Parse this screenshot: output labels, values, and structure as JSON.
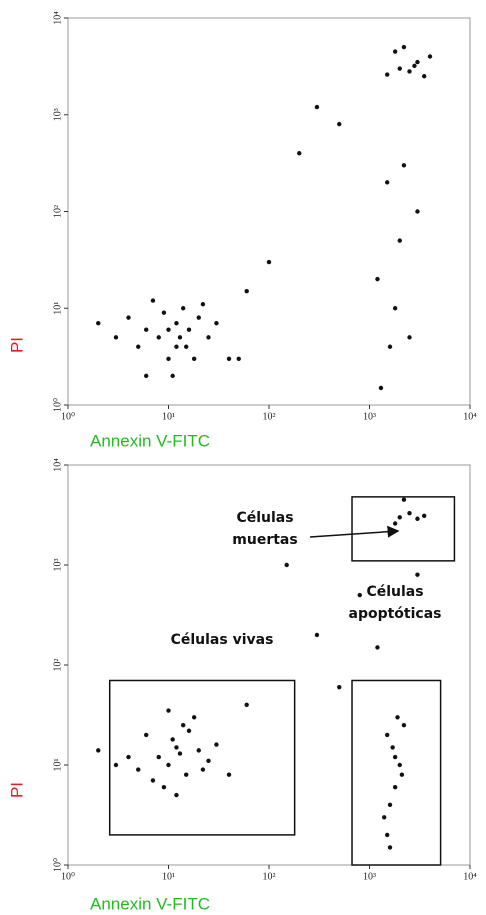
{
  "chart_data": [
    {
      "type": "scatter",
      "xlabel": "Annexin V-FITC",
      "ylabel": "PI",
      "log": true,
      "xlim": [
        1,
        10000
      ],
      "ylim": [
        1,
        10000
      ],
      "xticks": [
        {
          "value": 1,
          "label": "10⁰"
        },
        {
          "value": 10,
          "label": "10¹"
        },
        {
          "value": 100,
          "label": "10²"
        },
        {
          "value": 1000,
          "label": "10³"
        },
        {
          "value": 10000,
          "label": "10⁴"
        }
      ],
      "yticks": [
        {
          "value": 1,
          "label": "10⁰"
        },
        {
          "value": 10,
          "label": "10¹"
        },
        {
          "value": 100,
          "label": "10²"
        },
        {
          "value": 1000,
          "label": "10³"
        },
        {
          "value": 10000,
          "label": "10⁴"
        }
      ],
      "xlabel_color": "#22bb22",
      "ylabel_color": "#e02020",
      "series": [
        {
          "color": "#111111",
          "x": [
            8,
            12,
            15,
            10,
            6,
            20,
            14,
            9,
            25,
            11,
            5,
            18,
            30,
            7,
            13,
            16,
            4,
            22,
            10,
            12,
            3,
            2,
            40,
            6,
            2000,
            2500,
            3000,
            1800,
            3500,
            2200,
            4000,
            1500,
            2800,
            1500,
            2000,
            1800,
            2500,
            1300,
            3000,
            500,
            200,
            100,
            60,
            50,
            300,
            1200,
            2200,
            1600
          ],
          "y": [
            5,
            7,
            4,
            3,
            6,
            8,
            10,
            9,
            5,
            2,
            4,
            3,
            7,
            12,
            5,
            6,
            8,
            11,
            6,
            4,
            5,
            7,
            3,
            2,
            3000,
            2800,
            3500,
            4500,
            2500,
            5000,
            4000,
            2600,
            3200,
            200,
            50,
            10,
            5,
            1.5,
            100,
            800,
            400,
            30,
            15,
            3,
            1200,
            20,
            300,
            4
          ]
        }
      ]
    },
    {
      "type": "scatter",
      "xlabel": "Annexin V-FITC",
      "ylabel": "PI",
      "log": true,
      "xlim": [
        1,
        10000
      ],
      "ylim": [
        1,
        10000
      ],
      "xticks": [
        {
          "value": 1,
          "label": "10⁰"
        },
        {
          "value": 10,
          "label": "10¹"
        },
        {
          "value": 100,
          "label": "10²"
        },
        {
          "value": 1000,
          "label": "10³"
        },
        {
          "value": 10000,
          "label": "10⁴"
        }
      ],
      "yticks": [
        {
          "value": 1,
          "label": "10⁰"
        },
        {
          "value": 10,
          "label": "10¹"
        },
        {
          "value": 100,
          "label": "10²"
        },
        {
          "value": 1000,
          "label": "10³"
        },
        {
          "value": 10000,
          "label": "10⁴"
        }
      ],
      "xlabel_color": "#22bb22",
      "ylabel_color": "#e02020",
      "series": [
        {
          "color": "#111111",
          "x": [
            8,
            12,
            15,
            10,
            6,
            20,
            14,
            9,
            25,
            11,
            5,
            18,
            30,
            7,
            13,
            16,
            4,
            22,
            10,
            12,
            3,
            40,
            2000,
            2500,
            3000,
            1800,
            3500,
            2200,
            1500,
            1600,
            1800,
            2000,
            1700,
            1500,
            1900,
            2100,
            1400,
            1800,
            1600,
            2200,
            800,
            300,
            150,
            60,
            500,
            1200,
            3000,
            2
          ],
          "y": [
            12,
            15,
            8,
            10,
            20,
            14,
            25,
            6,
            11,
            18,
            9,
            30,
            16,
            7,
            13,
            22,
            12,
            9,
            35,
            5,
            10,
            8,
            3000,
            3300,
            2900,
            2600,
            3100,
            4500,
            2,
            4,
            6,
            10,
            15,
            20,
            30,
            8,
            3,
            12,
            1.5,
            25,
            500,
            200,
            1000,
            40,
            60,
            150,
            800,
            14
          ]
        }
      ],
      "gates": [
        {
          "label": [
            "Células",
            "muertas"
          ],
          "x": [
            670,
            7000
          ],
          "y": [
            1100,
            4800
          ]
        },
        {
          "label": [
            "Células vivas"
          ],
          "x": [
            2.6,
            180
          ],
          "y": [
            2,
            70
          ]
        },
        {
          "label": [
            "Células",
            "apoptóticas"
          ],
          "x": [
            670,
            5100
          ],
          "y": [
            1,
            70
          ]
        }
      ]
    }
  ]
}
